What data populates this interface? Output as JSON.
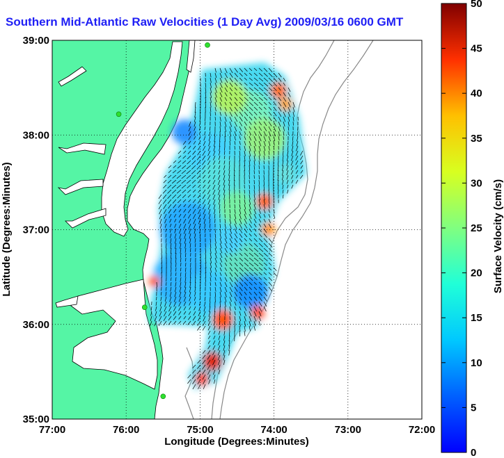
{
  "title": "Southern Mid-Atlantic Raw Velocities (1 Day Avg) 2009/03/16 0600 GMT",
  "map": {
    "xlabel": "Longitude (Degrees:Minutes)",
    "ylabel": "Latitude (Degrees:Minutes)",
    "xticks": [
      "77:00",
      "76:00",
      "75:00",
      "74:00",
      "73:00",
      "72:00"
    ],
    "yticks": [
      "35:00",
      "36:00",
      "37:00",
      "38:00",
      "39:00"
    ],
    "lon_range": [
      -77,
      -72
    ],
    "lat_range": [
      35,
      39
    ],
    "grid": true,
    "land_color": "#55f5a5",
    "station_color": "#2ee02e",
    "stations": [
      {
        "lon": -74.9,
        "lat": 38.95
      },
      {
        "lon": -76.1,
        "lat": 38.22
      },
      {
        "lon": -75.75,
        "lat": 36.18
      },
      {
        "lon": -75.5,
        "lat": 35.24
      }
    ]
  },
  "colorbar": {
    "label": "Surface Velocity (cm/s)",
    "ticks": [
      "0",
      "5",
      "10",
      "15",
      "20",
      "25",
      "30",
      "35",
      "40",
      "45",
      "50"
    ],
    "range": [
      0,
      50
    ],
    "colormap": "jet"
  }
}
